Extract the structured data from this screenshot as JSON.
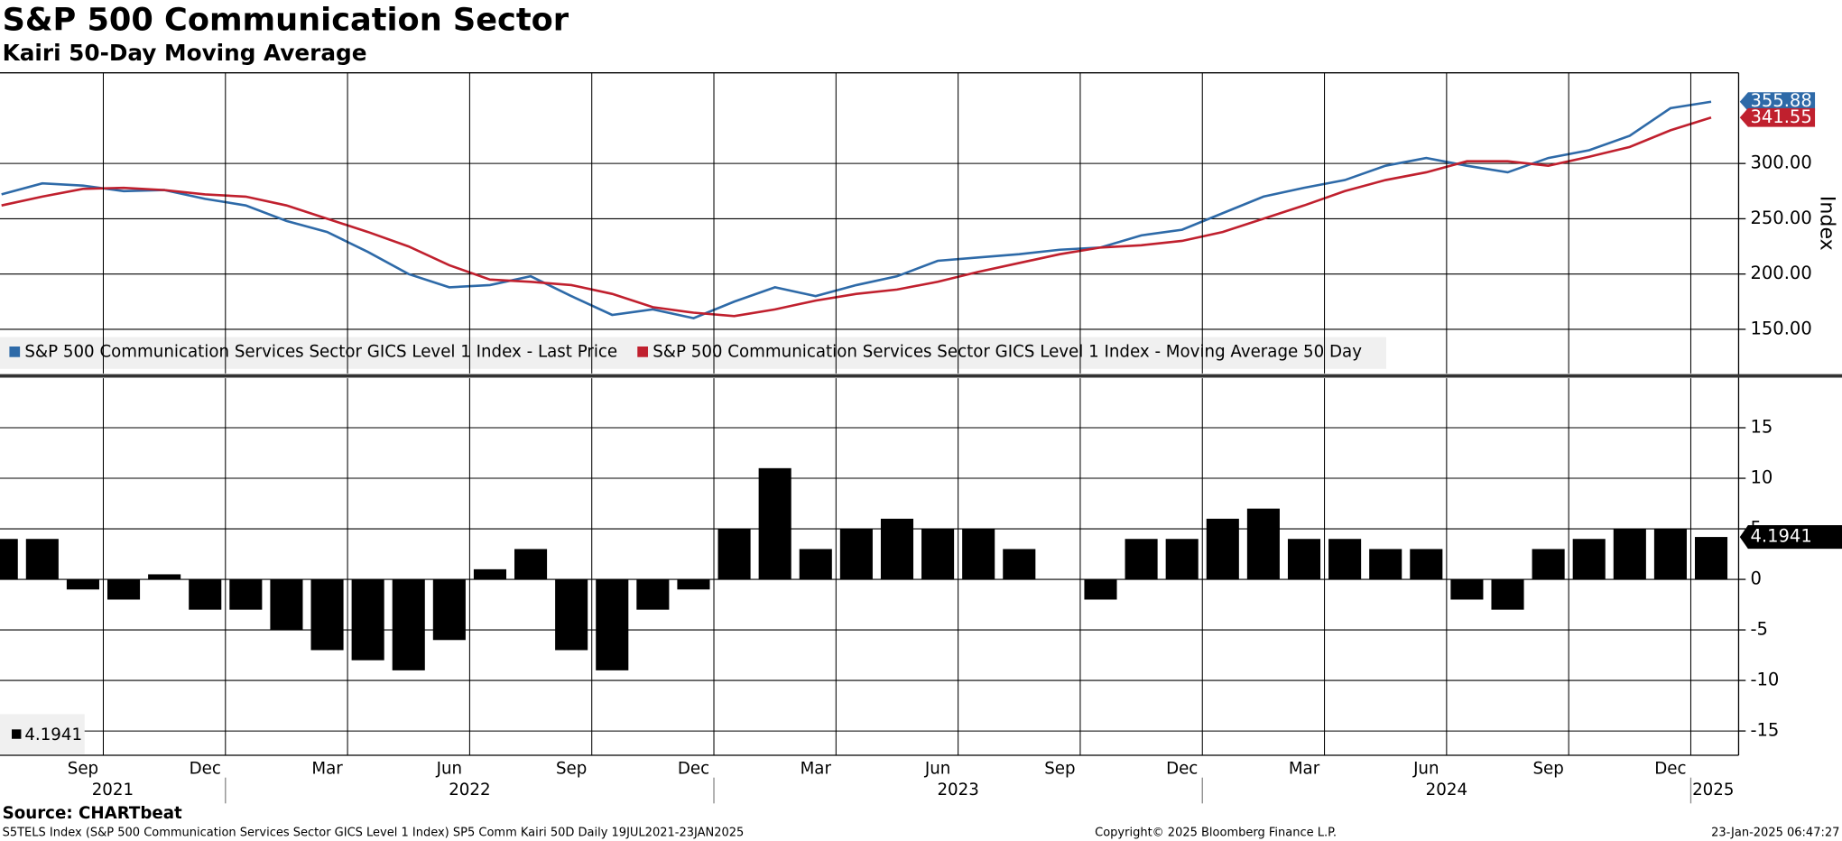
{
  "chart_data": [
    {
      "type": "line",
      "title": "S&P 500 Communication Sector",
      "subtitle": "Kairi 50-Day Moving Average",
      "ylabel": "Index",
      "x": [
        "2021-07",
        "2021-08",
        "2021-09",
        "2021-10",
        "2021-11",
        "2021-12",
        "2022-01",
        "2022-02",
        "2022-03",
        "2022-04",
        "2022-05",
        "2022-06",
        "2022-07",
        "2022-08",
        "2022-09",
        "2022-10",
        "2022-11",
        "2022-12",
        "2023-01",
        "2023-02",
        "2023-03",
        "2023-04",
        "2023-05",
        "2023-06",
        "2023-07",
        "2023-08",
        "2023-09",
        "2023-10",
        "2023-11",
        "2023-12",
        "2024-01",
        "2024-02",
        "2024-03",
        "2024-04",
        "2024-05",
        "2024-06",
        "2024-07",
        "2024-08",
        "2024-09",
        "2024-10",
        "2024-11",
        "2024-12",
        "2025-01"
      ],
      "series": [
        {
          "name": "S&P 500 Communication Services Sector GICS Level 1 Index - Last Price",
          "color": "#2e6aa8",
          "values": [
            272,
            282,
            280,
            275,
            276,
            268,
            262,
            248,
            238,
            220,
            200,
            188,
            190,
            198,
            180,
            163,
            168,
            160,
            175,
            188,
            180,
            190,
            198,
            212,
            215,
            218,
            222,
            224,
            235,
            240,
            255,
            270,
            278,
            285,
            298,
            305,
            298,
            292,
            305,
            312,
            325,
            350,
            355.88
          ]
        },
        {
          "name": "S&P 500 Communication Services Sector GICS Level 1 Index - Moving Average 50 Day",
          "color": "#c0202e",
          "values": [
            262,
            270,
            277,
            278,
            276,
            272,
            270,
            262,
            250,
            238,
            225,
            208,
            195,
            193,
            190,
            182,
            170,
            165,
            162,
            168,
            176,
            182,
            186,
            193,
            202,
            210,
            218,
            224,
            226,
            230,
            238,
            250,
            262,
            275,
            285,
            292,
            302,
            302,
            298,
            306,
            315,
            330,
            341.55
          ]
        }
      ],
      "ylim": [
        110,
        382
      ],
      "yticks": [
        {
          "value": 150,
          "label": "150.00"
        },
        {
          "value": 200,
          "label": "200.00"
        },
        {
          "value": 250,
          "label": "250.00"
        },
        {
          "value": 300,
          "label": "300.00"
        }
      ],
      "grid": true
    },
    {
      "type": "bar",
      "x": [
        "2021-07",
        "2021-08",
        "2021-09",
        "2021-10",
        "2021-11",
        "2021-12",
        "2022-01",
        "2022-02",
        "2022-03",
        "2022-04",
        "2022-05",
        "2022-06",
        "2022-07",
        "2022-08",
        "2022-09",
        "2022-10",
        "2022-11",
        "2022-12",
        "2023-01",
        "2023-02",
        "2023-03",
        "2023-04",
        "2023-05",
        "2023-06",
        "2023-07",
        "2023-08",
        "2023-09",
        "2023-10",
        "2023-11",
        "2023-12",
        "2024-01",
        "2024-02",
        "2024-03",
        "2024-04",
        "2024-05",
        "2024-06",
        "2024-07",
        "2024-08",
        "2024-09",
        "2024-10",
        "2024-11",
        "2024-12",
        "2025-01"
      ],
      "series": [
        {
          "color": "#000000",
          "values": [
            4,
            4,
            -1,
            -2,
            0.5,
            -3,
            -3,
            -5,
            -7,
            -8,
            -9,
            -6,
            1,
            3,
            -7,
            -9,
            -3,
            -1,
            5,
            11,
            3,
            5,
            6,
            5,
            5,
            3,
            0,
            -2,
            4,
            4,
            6,
            7,
            4,
            4,
            3,
            3,
            -2,
            -3,
            3,
            4,
            5,
            5,
            4.1941
          ]
        }
      ],
      "ylim": [
        -17.4,
        19.9
      ],
      "yticks": [
        -15,
        -10,
        -5,
        0,
        5,
        10,
        15
      ],
      "grid": true,
      "xticks": [
        {
          "value": "2021-09",
          "label": "Sep"
        },
        {
          "value": "2021-12",
          "label": "Dec"
        },
        {
          "value": "2022-03",
          "label": "Mar"
        },
        {
          "value": "2022-06",
          "label": "Jun"
        },
        {
          "value": "2022-09",
          "label": "Sep"
        },
        {
          "value": "2022-12",
          "label": "Dec"
        },
        {
          "value": "2023-03",
          "label": "Mar"
        },
        {
          "value": "2023-06",
          "label": "Jun"
        },
        {
          "value": "2023-09",
          "label": "Sep"
        },
        {
          "value": "2023-12",
          "label": "Dec"
        },
        {
          "value": "2024-03",
          "label": "Mar"
        },
        {
          "value": "2024-06",
          "label": "Jun"
        },
        {
          "value": "2024-09",
          "label": "Sep"
        },
        {
          "value": "2024-12",
          "label": "Dec"
        }
      ],
      "years": [
        "2021",
        "2022",
        "2023",
        "2024",
        "2025"
      ]
    }
  ],
  "footer": {
    "source": "Source: CHARTbeat",
    "note": "S5TELS Index (S&P 500 Communication Services Sector GICS Level 1 Index) SP5 Comm Kairi 50D  Daily 19JUL2021-23JAN2025",
    "copyright": "Copyright© 2025 Bloomberg Finance L.P.",
    "timestamp": "23-Jan-2025 06:47:27"
  }
}
